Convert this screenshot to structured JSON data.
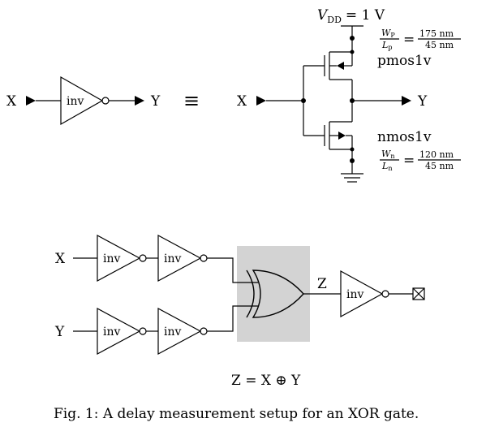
{
  "top": {
    "x_label": "X",
    "y_label": "Y",
    "gate_label": "inv",
    "equiv_symbol": "≡",
    "vdd": "V",
    "vdd_sub": "DD",
    "vdd_value": "= 1 V",
    "pmos_name": "pmos1v",
    "nmos_name": "nmos1v",
    "pmos_ratio": {
      "num_var": "W",
      "num_sub": "P",
      "den_var": "L",
      "den_sub": "p",
      "eq": "=",
      "num_val": "175 nm",
      "den_val": "45 nm"
    },
    "nmos_ratio": {
      "num_var": "W",
      "num_sub": "n",
      "den_var": "L",
      "den_sub": "n",
      "eq": "=",
      "num_val": "120 nm",
      "den_val": "45 nm"
    }
  },
  "bottom": {
    "x_label": "X",
    "y_label": "Y",
    "inv_label": "inv",
    "z_label": "Z",
    "equation": "Z = X ⊕ Y"
  },
  "caption": "Fig. 1: A delay measurement setup for an XOR gate."
}
